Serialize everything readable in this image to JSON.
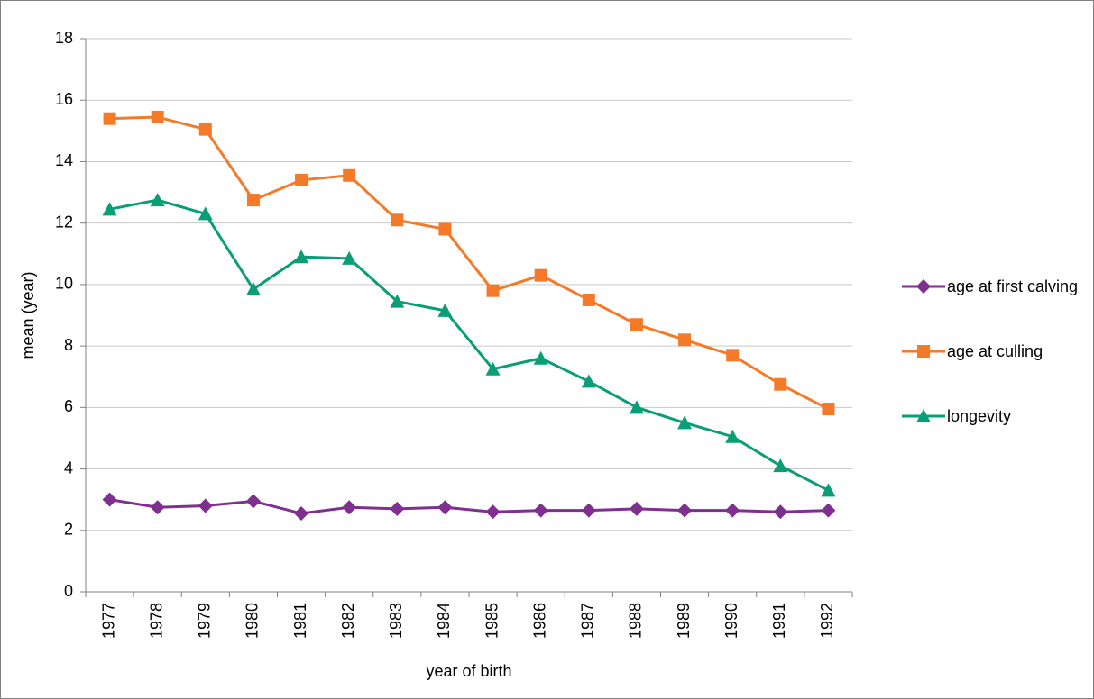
{
  "chart_data": {
    "type": "line",
    "x_label": "year of birth",
    "y_label": "mean (year)",
    "categories": [
      "1977",
      "1978",
      "1979",
      "1980",
      "1981",
      "1982",
      "1983",
      "1984",
      "1985",
      "1986",
      "1987",
      "1988",
      "1989",
      "1990",
      "1991",
      "1992"
    ],
    "series": [
      {
        "name": "age at first calving",
        "color": "#7f2f8f",
        "marker": "diamond",
        "values": [
          3.0,
          2.75,
          2.8,
          2.95,
          2.55,
          2.75,
          2.7,
          2.75,
          2.6,
          2.65,
          2.65,
          2.7,
          2.65,
          2.65,
          2.6,
          2.65
        ]
      },
      {
        "name": "age at culling",
        "color": "#f47a2a",
        "marker": "square",
        "values": [
          15.4,
          15.45,
          15.05,
          12.75,
          13.4,
          13.55,
          12.1,
          11.8,
          9.8,
          10.3,
          9.5,
          8.7,
          8.2,
          7.7,
          6.75,
          5.95
        ]
      },
      {
        "name": "longevity",
        "color": "#0a9e76",
        "marker": "triangle",
        "values": [
          12.45,
          12.75,
          12.3,
          9.85,
          10.9,
          10.85,
          9.45,
          9.15,
          7.25,
          7.6,
          6.85,
          6.0,
          5.5,
          5.05,
          4.1,
          3.3
        ]
      }
    ],
    "ylim": [
      0,
      18
    ],
    "yticks": [
      0,
      2,
      4,
      6,
      8,
      10,
      12,
      14,
      16,
      18
    ],
    "grid": true,
    "legend": "right"
  }
}
